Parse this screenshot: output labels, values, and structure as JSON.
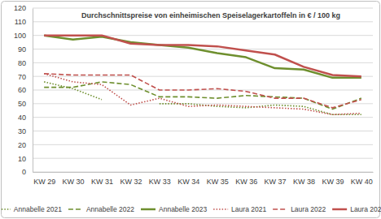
{
  "chart_data": {
    "type": "line",
    "title": "Durchschnittspreise von einheimischen Speiselagerkartoffeln in € / 100 kg",
    "categories": [
      "KW 29",
      "KW 30",
      "KW 31",
      "KW 32",
      "KW 33",
      "KW 34",
      "KW 35",
      "KW 36",
      "KW 37",
      "KW 38",
      "KW 39",
      "KW 40"
    ],
    "ylim": [
      0,
      120
    ],
    "yticks": [
      0,
      10,
      20,
      30,
      40,
      50,
      60,
      70,
      80,
      90,
      100,
      110,
      120
    ],
    "grid": true,
    "legend": "bottom",
    "series": [
      {
        "name": "Annabelle 2021",
        "color": "#6e8f2e",
        "line_style": "dotted",
        "values": [
          66,
          61,
          53,
          null,
          50,
          50,
          48,
          47,
          49,
          48,
          42,
          42
        ]
      },
      {
        "name": "Annabelle 2022",
        "color": "#6e8f2e",
        "line_style": "dashed",
        "values": [
          62,
          62,
          66,
          64,
          55,
          55,
          54,
          56,
          55,
          54,
          46,
          54
        ]
      },
      {
        "name": "Annabelle 2023",
        "color": "#6e8f2e",
        "line_style": "solid",
        "values": [
          100,
          97,
          99,
          95,
          93,
          91,
          87,
          84,
          76,
          75,
          69,
          69
        ]
      },
      {
        "name": "Laura 2021",
        "color": "#c0504d",
        "line_style": "dotted",
        "values": [
          72,
          66,
          64,
          49,
          54,
          48,
          49,
          48,
          47,
          46,
          42,
          43
        ]
      },
      {
        "name": "Laura 2022",
        "color": "#c0504d",
        "line_style": "dashed",
        "values": [
          72,
          71,
          71,
          71,
          60,
          60,
          61,
          59,
          54,
          54,
          47,
          53
        ]
      },
      {
        "name": "Laura 2023",
        "color": "#c0504d",
        "line_style": "solid",
        "values": [
          100,
          100,
          100,
          94,
          93,
          93,
          92,
          89,
          86,
          77,
          71,
          70
        ]
      }
    ]
  }
}
